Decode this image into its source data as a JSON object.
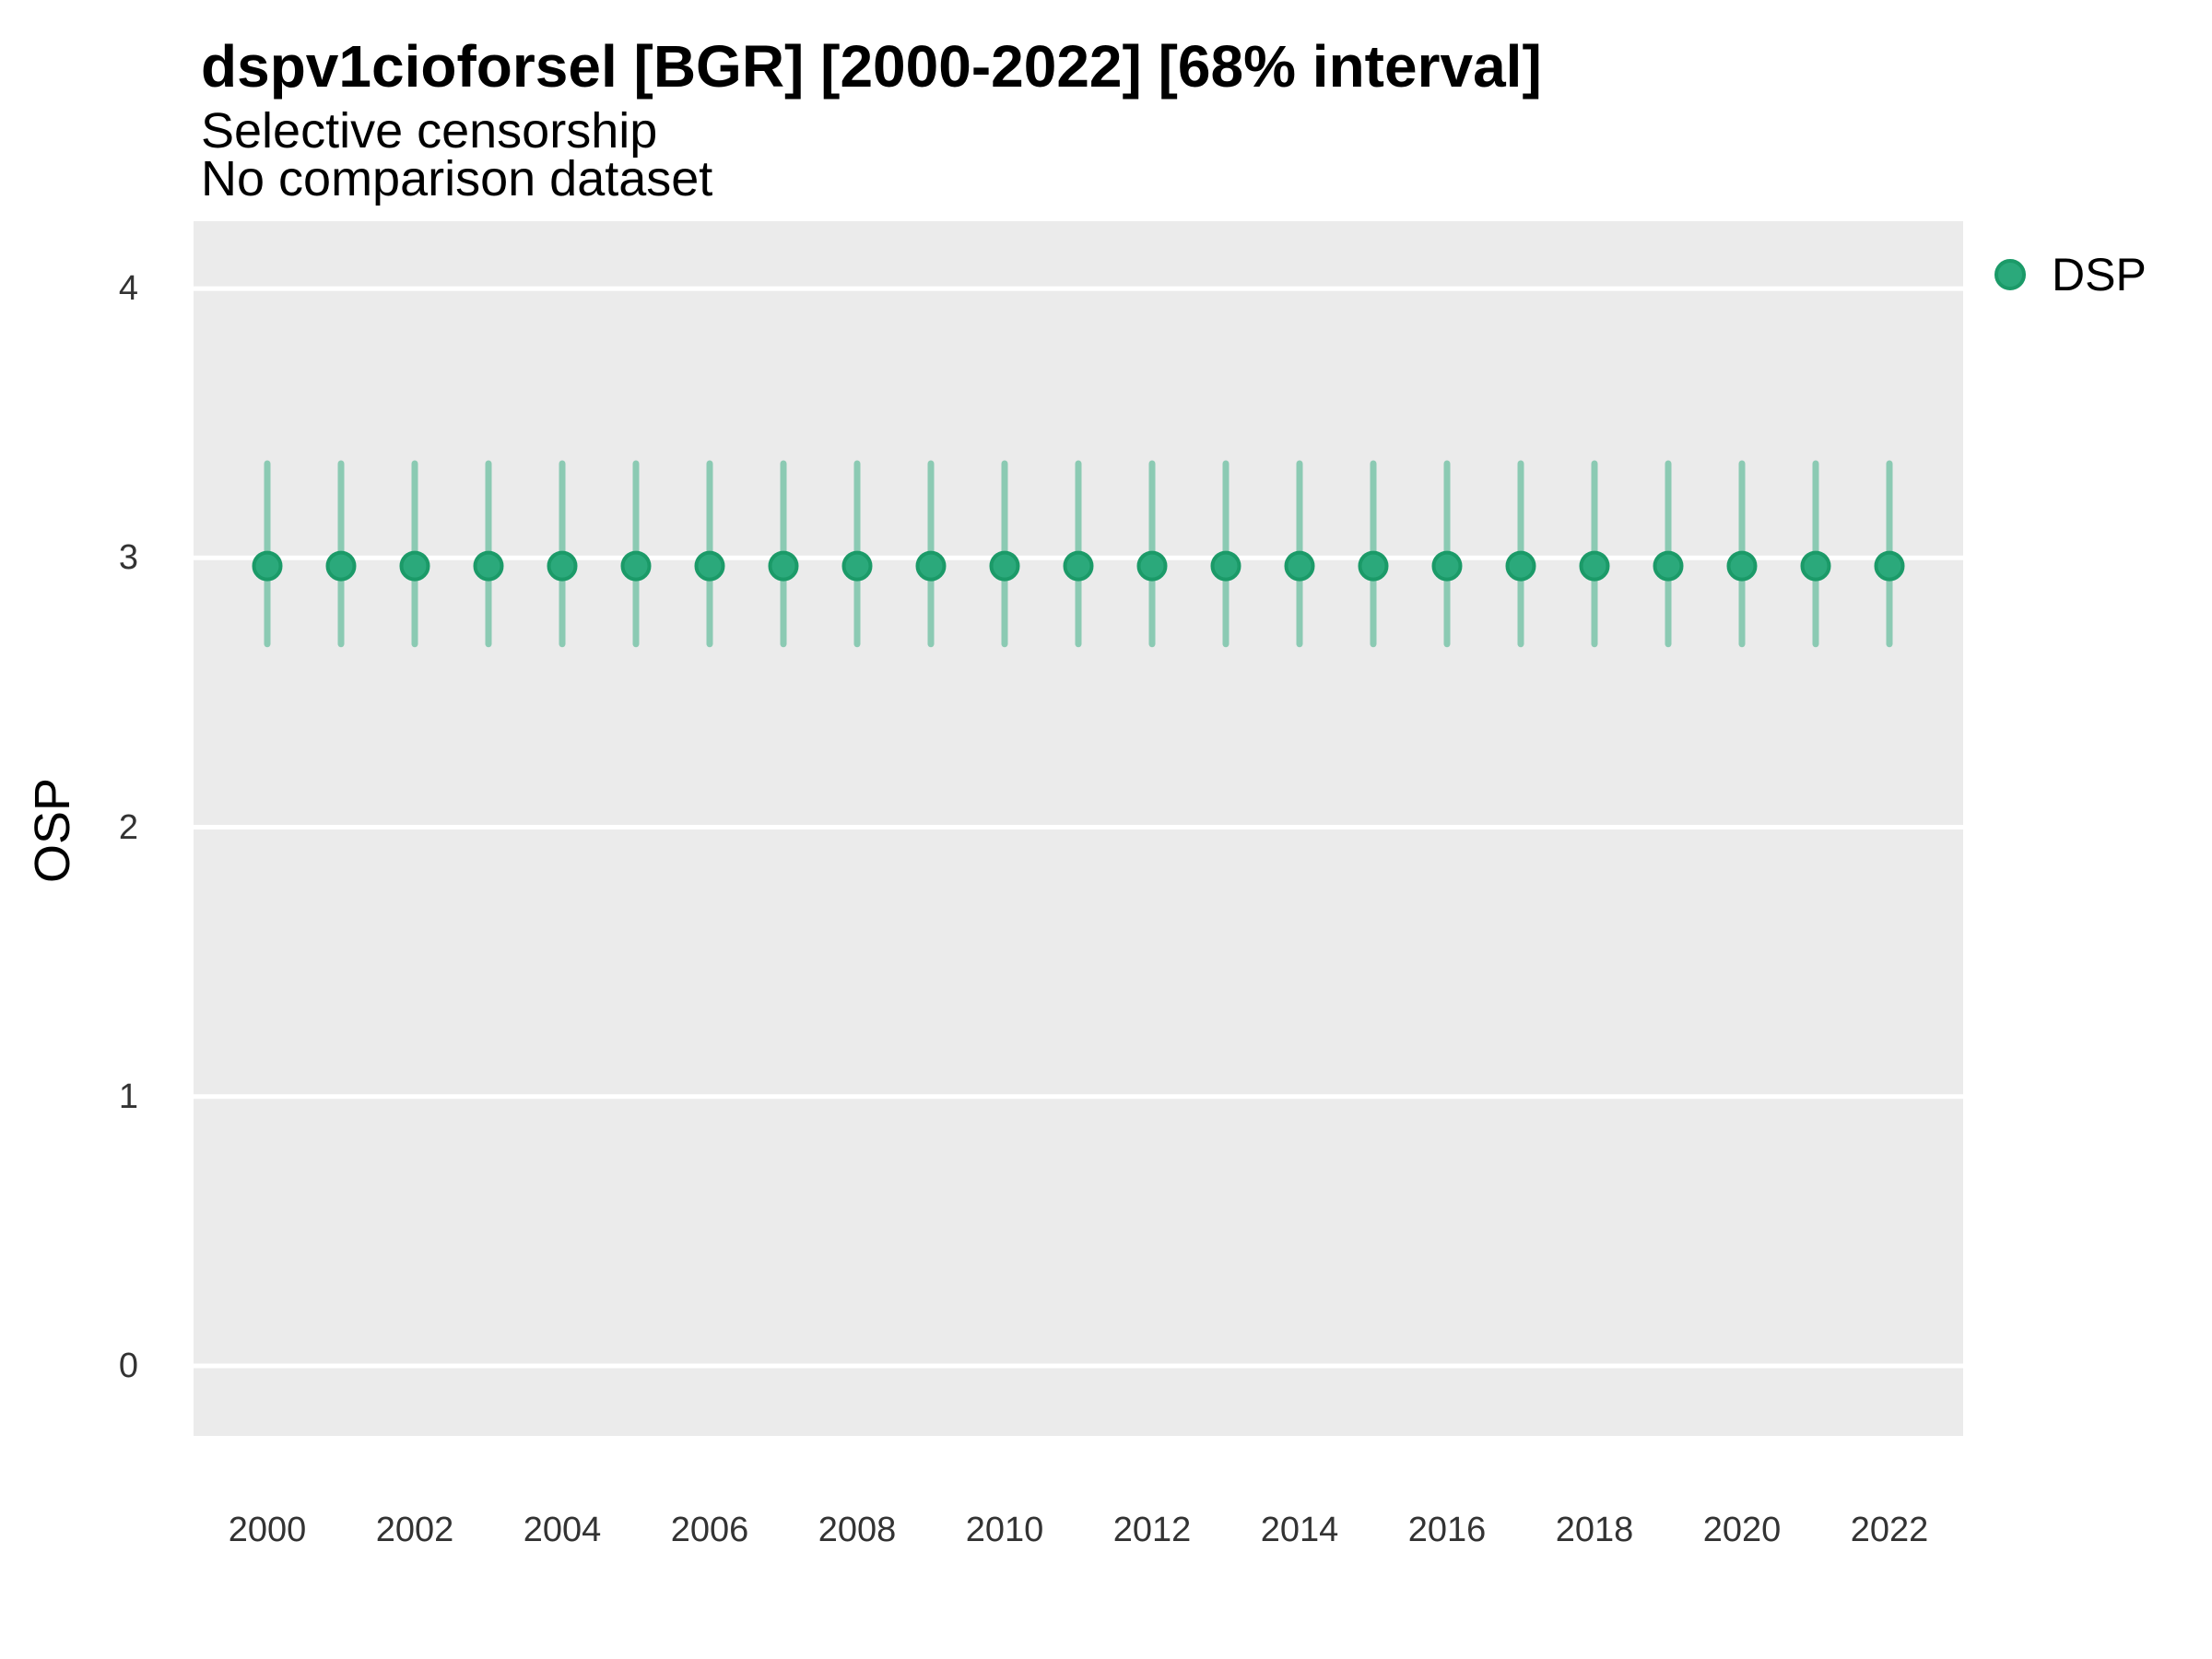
{
  "chart_data": {
    "type": "scatter",
    "title": "dspv1cioforsel [BGR] [2000-2022] [68% interval]",
    "subtitle": "Selective censorship",
    "note": "No comparison dataset",
    "xlabel": "",
    "ylabel": "OSP",
    "interval_label": "68% interval",
    "legend": {
      "label": "DSP",
      "position": "right"
    },
    "series": [
      {
        "name": "DSP",
        "x": [
          2000,
          2001,
          2002,
          2003,
          2004,
          2005,
          2006,
          2007,
          2008,
          2009,
          2010,
          2011,
          2012,
          2013,
          2014,
          2015,
          2016,
          2017,
          2018,
          2019,
          2020,
          2021,
          2022
        ],
        "y": [
          2.97,
          2.97,
          2.97,
          2.97,
          2.97,
          2.97,
          2.97,
          2.97,
          2.97,
          2.97,
          2.97,
          2.97,
          2.97,
          2.97,
          2.97,
          2.97,
          2.97,
          2.97,
          2.97,
          2.97,
          2.97,
          2.97,
          2.97
        ],
        "ymin": [
          2.68,
          2.68,
          2.68,
          2.68,
          2.68,
          2.68,
          2.68,
          2.68,
          2.68,
          2.68,
          2.68,
          2.68,
          2.68,
          2.68,
          2.68,
          2.68,
          2.68,
          2.68,
          2.68,
          2.68,
          2.68,
          2.68,
          2.68
        ],
        "ymax": [
          3.35,
          3.35,
          3.35,
          3.35,
          3.35,
          3.35,
          3.35,
          3.35,
          3.35,
          3.35,
          3.35,
          3.35,
          3.35,
          3.35,
          3.35,
          3.35,
          3.35,
          3.35,
          3.35,
          3.35,
          3.35,
          3.35,
          3.35
        ]
      }
    ],
    "x_ticks": [
      2000,
      2002,
      2004,
      2006,
      2008,
      2010,
      2012,
      2014,
      2016,
      2018,
      2020,
      2022
    ],
    "y_ticks": [
      0,
      1,
      2,
      3,
      4
    ],
    "xlim": [
      1999,
      2023
    ],
    "ylim": [
      -0.26,
      4.25
    ],
    "grid": "horizontal-major-only",
    "legend_position": "right",
    "colors": {
      "point_fill": "#2BA97B",
      "point_stroke": "#1B9A68",
      "interval": "rgba(43,169,123,0.5)",
      "panel_bg": "#EBEBEB",
      "grid": "#FFFFFF",
      "title_text": "#000000",
      "tick_text": "#333333"
    }
  }
}
